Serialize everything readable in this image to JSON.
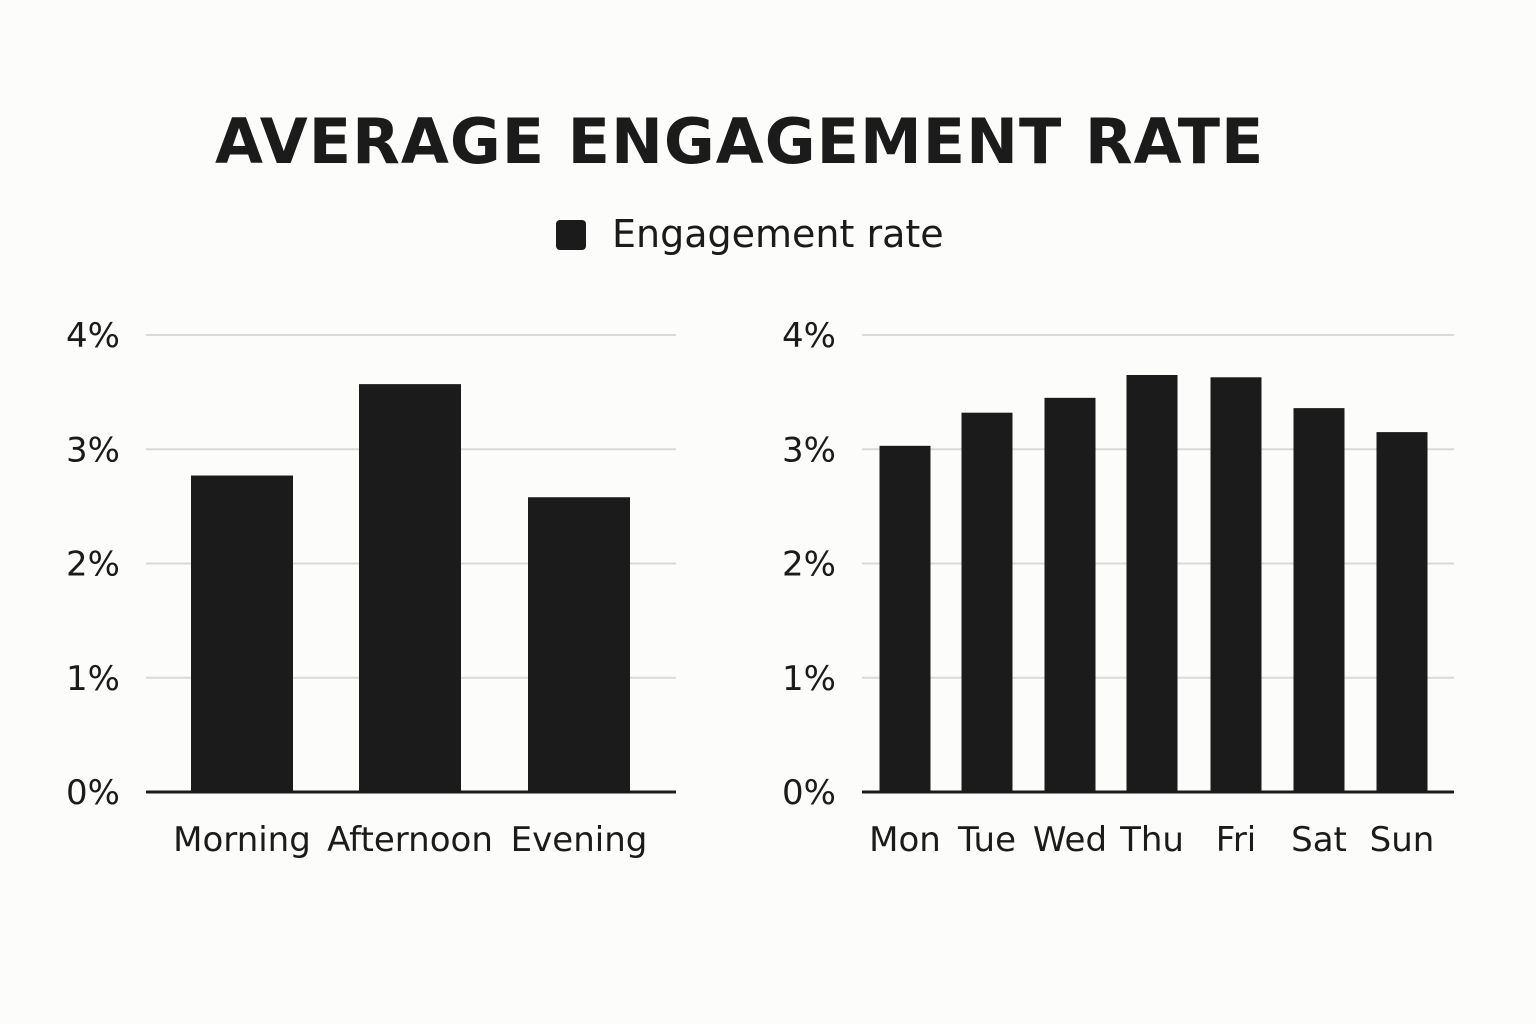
{
  "chart_data": [
    {
      "type": "bar",
      "title": "AVERAGE ENGAGEMENT RATE",
      "legend": [
        {
          "name": "Engagement rate",
          "color": "#1b1b1b"
        }
      ],
      "categories": [
        "Morning",
        "Afternoon",
        "Evening"
      ],
      "series": [
        {
          "name": "Engagement rate",
          "values": [
            2.77,
            3.57,
            2.58
          ]
        }
      ],
      "ylim": [
        0,
        4
      ],
      "yticks": [
        0,
        1,
        2,
        3,
        4
      ],
      "ytick_labels": [
        "0%",
        "1%",
        "2%",
        "3%",
        "4%"
      ],
      "grid": true,
      "xlabel": "",
      "ylabel": ""
    },
    {
      "type": "bar",
      "categories": [
        "Mon",
        "Tue",
        "Wed",
        "Thu",
        "Fri",
        "Sat",
        "Sun"
      ],
      "series": [
        {
          "name": "Engagement rate",
          "values": [
            3.03,
            3.32,
            3.45,
            3.65,
            3.63,
            3.36,
            3.15
          ]
        }
      ],
      "ylim": [
        0,
        4
      ],
      "yticks": [
        0,
        1,
        2,
        3,
        4
      ],
      "ytick_labels": [
        "0%",
        "1%",
        "2%",
        "3%",
        "4%"
      ],
      "grid": true,
      "xlabel": "",
      "ylabel": ""
    }
  ]
}
